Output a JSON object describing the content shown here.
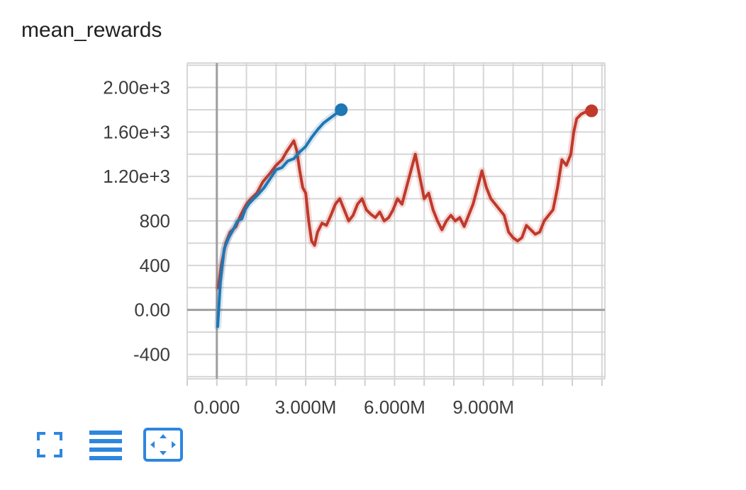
{
  "card": {
    "title": "mean_rewards"
  },
  "toolbar": {
    "buttons": [
      {
        "name": "fullscreen-button",
        "icon": "fullscreen-icon"
      },
      {
        "name": "toggle-log-list-button",
        "icon": "list-icon"
      },
      {
        "name": "fit-domain-button",
        "icon": "fit-to-domain-icon"
      }
    ],
    "accent_color": "#2e86de"
  },
  "chart_data": {
    "type": "line",
    "title": "mean_rewards",
    "xlabel": "",
    "ylabel": "",
    "xlim": [
      -1000000,
      13100000
    ],
    "ylim": [
      -620,
      2220
    ],
    "x_ticks": [
      0,
      3000000,
      6000000,
      9000000
    ],
    "x_tick_labels": [
      "0.000",
      "3.000M",
      "6.000M",
      "9.000M"
    ],
    "y_ticks": [
      -400,
      0,
      400,
      800,
      1200,
      1600,
      2000
    ],
    "y_tick_labels": [
      "-400",
      "0.00",
      "400",
      "800",
      "1.20e+3",
      "1.60e+3",
      "2.00e+3"
    ],
    "grid": true,
    "series": [
      {
        "color": "#c0392b",
        "x": [
          50000,
          150000,
          300000,
          450000,
          650000,
          800000,
          1000000,
          1150000,
          1350000,
          1550000,
          1800000,
          2000000,
          2200000,
          2350000,
          2500000,
          2600000,
          2700000,
          2800000,
          2900000,
          3000000,
          3100000,
          3200000,
          3300000,
          3400000,
          3550000,
          3700000,
          3850000,
          4000000,
          4150000,
          4300000,
          4450000,
          4600000,
          4750000,
          4900000,
          5050000,
          5200000,
          5350000,
          5500000,
          5650000,
          5800000,
          5950000,
          6100000,
          6250000,
          6400000,
          6550000,
          6700000,
          6850000,
          7000000,
          7150000,
          7300000,
          7450000,
          7600000,
          7750000,
          7900000,
          8050000,
          8200000,
          8350000,
          8500000,
          8650000,
          8800000,
          8950000,
          9100000,
          9250000,
          9400000,
          9550000,
          9700000,
          9850000,
          10000000,
          10150000,
          10300000,
          10450000,
          10600000,
          10750000,
          10900000,
          11050000,
          11200000,
          11350000,
          11500000,
          11650000,
          11800000,
          11950000,
          12050000,
          12150000,
          12300000,
          12450000,
          12550000,
          12650000
        ],
        "y": [
          200,
          400,
          600,
          700,
          750,
          850,
          950,
          1000,
          1050,
          1150,
          1230,
          1300,
          1350,
          1420,
          1480,
          1520,
          1430,
          1250,
          1100,
          1050,
          800,
          620,
          580,
          700,
          780,
          760,
          850,
          950,
          1000,
          900,
          800,
          850,
          950,
          1000,
          900,
          860,
          830,
          880,
          800,
          830,
          900,
          1000,
          950,
          1100,
          1250,
          1400,
          1200,
          1000,
          1050,
          900,
          800,
          720,
          800,
          850,
          800,
          830,
          750,
          850,
          950,
          1100,
          1250,
          1100,
          1000,
          950,
          900,
          850,
          700,
          650,
          620,
          650,
          760,
          720,
          680,
          700,
          800,
          850,
          900,
          1100,
          1350,
          1300,
          1400,
          1600,
          1720,
          1760,
          1780,
          1790,
          1790
        ],
        "end_marker": true
      },
      {
        "color": "#1f77b4",
        "x": [
          30000,
          120000,
          250000,
          400000,
          550000,
          700000,
          850000,
          950000,
          1100000,
          1250000,
          1400000,
          1600000,
          1800000,
          2000000,
          2200000,
          2400000,
          2600000,
          2800000,
          3000000,
          3200000,
          3400000,
          3600000,
          3800000,
          3950000,
          4100000,
          4200000
        ],
        "y": [
          -150,
          250,
          550,
          650,
          720,
          800,
          820,
          900,
          960,
          1000,
          1040,
          1100,
          1180,
          1260,
          1280,
          1340,
          1360,
          1420,
          1470,
          1550,
          1620,
          1680,
          1720,
          1750,
          1780,
          1800
        ],
        "end_marker": true
      }
    ]
  }
}
